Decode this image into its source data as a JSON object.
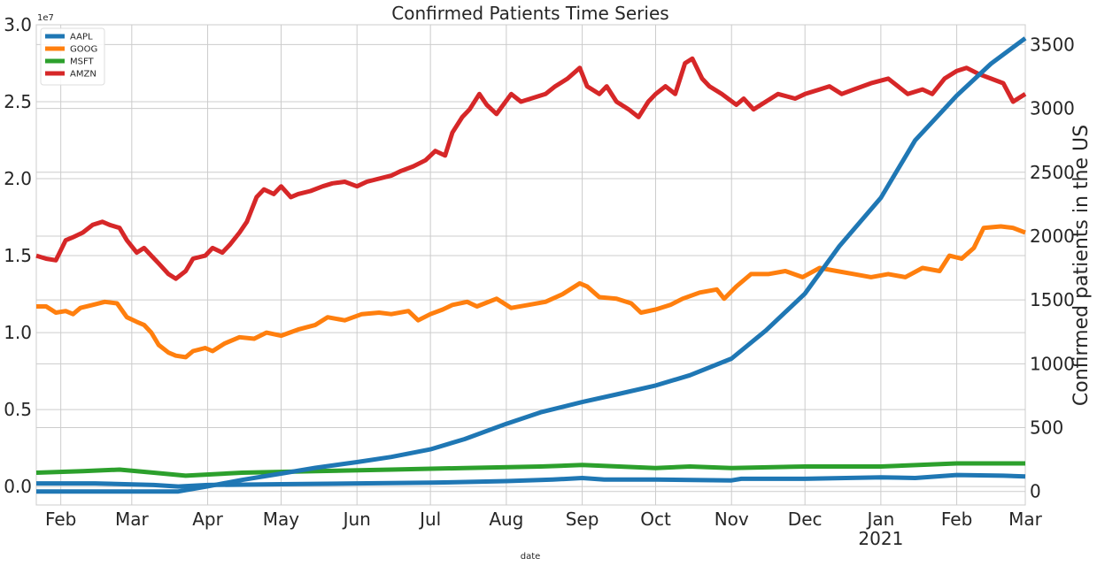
{
  "chart_data": {
    "type": "line",
    "title": "Confirmed Patients Time Series",
    "xlabel": "date",
    "ylabel_left": "",
    "ylabel_right": "Confirmed patients in the US",
    "left_offset_label": "1e7",
    "x_range": [
      "2020-01-22",
      "2021-03-01"
    ],
    "ylim_left": [
      -0.12,
      3.0
    ],
    "ylim_right": [
      -106,
      3655
    ],
    "grid": true,
    "legend_position": "top-left",
    "x_ticks": [
      {
        "date": "2020-02-01",
        "label": "Feb",
        "sub": ""
      },
      {
        "date": "2020-03-01",
        "label": "Mar",
        "sub": ""
      },
      {
        "date": "2020-04-01",
        "label": "Apr",
        "sub": ""
      },
      {
        "date": "2020-05-01",
        "label": "May",
        "sub": ""
      },
      {
        "date": "2020-06-01",
        "label": "Jun",
        "sub": ""
      },
      {
        "date": "2020-07-01",
        "label": "Jul",
        "sub": ""
      },
      {
        "date": "2020-08-01",
        "label": "Aug",
        "sub": ""
      },
      {
        "date": "2020-09-01",
        "label": "Sep",
        "sub": ""
      },
      {
        "date": "2020-10-01",
        "label": "Oct",
        "sub": ""
      },
      {
        "date": "2020-11-01",
        "label": "Nov",
        "sub": ""
      },
      {
        "date": "2020-12-01",
        "label": "Dec",
        "sub": ""
      },
      {
        "date": "2021-01-01",
        "label": "Jan",
        "sub": "2021"
      },
      {
        "date": "2021-02-01",
        "label": "Feb",
        "sub": ""
      },
      {
        "date": "2021-03-01",
        "label": "Mar",
        "sub": ""
      }
    ],
    "y_ticks_left": [
      {
        "value": 0.0,
        "label": "0.0"
      },
      {
        "value": 0.5,
        "label": "0.5"
      },
      {
        "value": 1.0,
        "label": "1.0"
      },
      {
        "value": 1.5,
        "label": "1.5"
      },
      {
        "value": 2.0,
        "label": "2.0"
      },
      {
        "value": 2.5,
        "label": "2.5"
      },
      {
        "value": 3.0,
        "label": "3.0"
      }
    ],
    "y_ticks_right": [
      {
        "value": 0,
        "label": "0"
      },
      {
        "value": 500,
        "label": "500"
      },
      {
        "value": 1000,
        "label": "1000"
      },
      {
        "value": 1500,
        "label": "1500"
      },
      {
        "value": 2000,
        "label": "2000"
      },
      {
        "value": 2500,
        "label": "2500"
      },
      {
        "value": 3000,
        "label": "3000"
      },
      {
        "value": 3500,
        "label": "3500"
      }
    ],
    "series": [
      {
        "name": "AAPL",
        "axis": "left",
        "color": "#1f77b4",
        "points": [
          [
            "2020-01-22",
            0.02
          ],
          [
            "2020-02-15",
            0.02
          ],
          [
            "2020-03-10",
            0.01
          ],
          [
            "2020-03-20",
            0.0
          ],
          [
            "2020-04-01",
            0.01
          ],
          [
            "2020-05-01",
            0.015
          ],
          [
            "2020-06-01",
            0.02
          ],
          [
            "2020-07-01",
            0.025
          ],
          [
            "2020-08-01",
            0.035
          ],
          [
            "2020-08-20",
            0.045
          ],
          [
            "2020-09-01",
            0.055
          ],
          [
            "2020-09-10",
            0.045
          ],
          [
            "2020-10-01",
            0.045
          ],
          [
            "2020-11-01",
            0.04
          ],
          [
            "2020-11-05",
            0.05
          ],
          [
            "2020-12-01",
            0.05
          ],
          [
            "2021-01-01",
            0.06
          ],
          [
            "2021-01-15",
            0.055
          ],
          [
            "2021-02-01",
            0.075
          ],
          [
            "2021-02-20",
            0.07
          ],
          [
            "2021-03-01",
            0.065
          ]
        ]
      },
      {
        "name": "GOOG",
        "axis": "left",
        "color": "#ff7f0e",
        "points": [
          [
            "2020-01-22",
            1.17
          ],
          [
            "2020-01-26",
            1.17
          ],
          [
            "2020-01-30",
            1.13
          ],
          [
            "2020-02-03",
            1.14
          ],
          [
            "2020-02-06",
            1.12
          ],
          [
            "2020-02-09",
            1.16
          ],
          [
            "2020-02-14",
            1.18
          ],
          [
            "2020-02-19",
            1.2
          ],
          [
            "2020-02-24",
            1.19
          ],
          [
            "2020-02-28",
            1.1
          ],
          [
            "2020-03-03",
            1.07
          ],
          [
            "2020-03-06",
            1.05
          ],
          [
            "2020-03-09",
            1.0
          ],
          [
            "2020-03-12",
            0.92
          ],
          [
            "2020-03-16",
            0.87
          ],
          [
            "2020-03-19",
            0.85
          ],
          [
            "2020-03-23",
            0.84
          ],
          [
            "2020-03-26",
            0.88
          ],
          [
            "2020-03-31",
            0.9
          ],
          [
            "2020-04-03",
            0.88
          ],
          [
            "2020-04-08",
            0.93
          ],
          [
            "2020-04-14",
            0.97
          ],
          [
            "2020-04-20",
            0.96
          ],
          [
            "2020-04-25",
            1.0
          ],
          [
            "2020-05-01",
            0.98
          ],
          [
            "2020-05-08",
            1.02
          ],
          [
            "2020-05-15",
            1.05
          ],
          [
            "2020-05-20",
            1.1
          ],
          [
            "2020-05-27",
            1.08
          ],
          [
            "2020-06-03",
            1.12
          ],
          [
            "2020-06-10",
            1.13
          ],
          [
            "2020-06-15",
            1.12
          ],
          [
            "2020-06-22",
            1.14
          ],
          [
            "2020-06-26",
            1.08
          ],
          [
            "2020-07-01",
            1.12
          ],
          [
            "2020-07-06",
            1.15
          ],
          [
            "2020-07-10",
            1.18
          ],
          [
            "2020-07-16",
            1.2
          ],
          [
            "2020-07-20",
            1.17
          ],
          [
            "2020-07-28",
            1.22
          ],
          [
            "2020-08-03",
            1.16
          ],
          [
            "2020-08-10",
            1.18
          ],
          [
            "2020-08-17",
            1.2
          ],
          [
            "2020-08-24",
            1.25
          ],
          [
            "2020-08-31",
            1.32
          ],
          [
            "2020-09-03",
            1.3
          ],
          [
            "2020-09-08",
            1.23
          ],
          [
            "2020-09-15",
            1.22
          ],
          [
            "2020-09-21",
            1.19
          ],
          [
            "2020-09-25",
            1.13
          ],
          [
            "2020-10-01",
            1.15
          ],
          [
            "2020-10-07",
            1.18
          ],
          [
            "2020-10-12",
            1.22
          ],
          [
            "2020-10-19",
            1.26
          ],
          [
            "2020-10-26",
            1.28
          ],
          [
            "2020-10-29",
            1.22
          ],
          [
            "2020-11-03",
            1.3
          ],
          [
            "2020-11-09",
            1.38
          ],
          [
            "2020-11-16",
            1.38
          ],
          [
            "2020-11-23",
            1.4
          ],
          [
            "2020-11-30",
            1.36
          ],
          [
            "2020-12-07",
            1.42
          ],
          [
            "2020-12-14",
            1.4
          ],
          [
            "2020-12-21",
            1.38
          ],
          [
            "2020-12-28",
            1.36
          ],
          [
            "2021-01-04",
            1.38
          ],
          [
            "2021-01-11",
            1.36
          ],
          [
            "2021-01-18",
            1.42
          ],
          [
            "2021-01-25",
            1.4
          ],
          [
            "2021-01-29",
            1.5
          ],
          [
            "2021-02-03",
            1.48
          ],
          [
            "2021-02-08",
            1.55
          ],
          [
            "2021-02-12",
            1.68
          ],
          [
            "2021-02-19",
            1.69
          ],
          [
            "2021-02-24",
            1.68
          ],
          [
            "2021-03-01",
            1.65
          ]
        ]
      },
      {
        "name": "MSFT",
        "axis": "left",
        "color": "#2ca02c",
        "points": [
          [
            "2020-01-22",
            0.09
          ],
          [
            "2020-02-10",
            0.1
          ],
          [
            "2020-02-25",
            0.11
          ],
          [
            "2020-03-10",
            0.09
          ],
          [
            "2020-03-23",
            0.07
          ],
          [
            "2020-04-15",
            0.09
          ],
          [
            "2020-05-15",
            0.1
          ],
          [
            "2020-06-15",
            0.11
          ],
          [
            "2020-07-15",
            0.12
          ],
          [
            "2020-08-15",
            0.13
          ],
          [
            "2020-09-01",
            0.14
          ],
          [
            "2020-10-01",
            0.12
          ],
          [
            "2020-10-15",
            0.13
          ],
          [
            "2020-11-01",
            0.12
          ],
          [
            "2020-12-01",
            0.13
          ],
          [
            "2021-01-01",
            0.13
          ],
          [
            "2021-02-01",
            0.15
          ],
          [
            "2021-03-01",
            0.15
          ]
        ]
      },
      {
        "name": "AMZN",
        "axis": "left",
        "color": "#d62728",
        "points": [
          [
            "2020-01-22",
            1.5
          ],
          [
            "2020-01-26",
            1.48
          ],
          [
            "2020-01-30",
            1.47
          ],
          [
            "2020-02-03",
            1.6
          ],
          [
            "2020-02-06",
            1.62
          ],
          [
            "2020-02-10",
            1.65
          ],
          [
            "2020-02-14",
            1.7
          ],
          [
            "2020-02-18",
            1.72
          ],
          [
            "2020-02-21",
            1.7
          ],
          [
            "2020-02-25",
            1.68
          ],
          [
            "2020-02-28",
            1.6
          ],
          [
            "2020-03-03",
            1.52
          ],
          [
            "2020-03-06",
            1.55
          ],
          [
            "2020-03-09",
            1.5
          ],
          [
            "2020-03-12",
            1.45
          ],
          [
            "2020-03-16",
            1.38
          ],
          [
            "2020-03-19",
            1.35
          ],
          [
            "2020-03-23",
            1.4
          ],
          [
            "2020-03-26",
            1.48
          ],
          [
            "2020-03-31",
            1.5
          ],
          [
            "2020-04-03",
            1.55
          ],
          [
            "2020-04-07",
            1.52
          ],
          [
            "2020-04-10",
            1.57
          ],
          [
            "2020-04-14",
            1.65
          ],
          [
            "2020-04-17",
            1.72
          ],
          [
            "2020-04-21",
            1.88
          ],
          [
            "2020-04-24",
            1.93
          ],
          [
            "2020-04-28",
            1.9
          ],
          [
            "2020-05-01",
            1.95
          ],
          [
            "2020-05-05",
            1.88
          ],
          [
            "2020-05-08",
            1.9
          ],
          [
            "2020-05-13",
            1.92
          ],
          [
            "2020-05-18",
            1.95
          ],
          [
            "2020-05-22",
            1.97
          ],
          [
            "2020-05-27",
            1.98
          ],
          [
            "2020-06-01",
            1.95
          ],
          [
            "2020-06-05",
            1.98
          ],
          [
            "2020-06-10",
            2.0
          ],
          [
            "2020-06-15",
            2.02
          ],
          [
            "2020-06-19",
            2.05
          ],
          [
            "2020-06-24",
            2.08
          ],
          [
            "2020-06-29",
            2.12
          ],
          [
            "2020-07-03",
            2.18
          ],
          [
            "2020-07-07",
            2.15
          ],
          [
            "2020-07-10",
            2.3
          ],
          [
            "2020-07-14",
            2.4
          ],
          [
            "2020-07-17",
            2.45
          ],
          [
            "2020-07-21",
            2.55
          ],
          [
            "2020-07-24",
            2.48
          ],
          [
            "2020-07-28",
            2.42
          ],
          [
            "2020-08-03",
            2.55
          ],
          [
            "2020-08-07",
            2.5
          ],
          [
            "2020-08-11",
            2.52
          ],
          [
            "2020-08-17",
            2.55
          ],
          [
            "2020-08-21",
            2.6
          ],
          [
            "2020-08-26",
            2.65
          ],
          [
            "2020-08-31",
            2.72
          ],
          [
            "2020-09-03",
            2.6
          ],
          [
            "2020-09-08",
            2.55
          ],
          [
            "2020-09-11",
            2.6
          ],
          [
            "2020-09-15",
            2.5
          ],
          [
            "2020-09-20",
            2.45
          ],
          [
            "2020-09-24",
            2.4
          ],
          [
            "2020-09-28",
            2.5
          ],
          [
            "2020-10-01",
            2.55
          ],
          [
            "2020-10-05",
            2.6
          ],
          [
            "2020-10-09",
            2.55
          ],
          [
            "2020-10-13",
            2.75
          ],
          [
            "2020-10-16",
            2.78
          ],
          [
            "2020-10-20",
            2.65
          ],
          [
            "2020-10-23",
            2.6
          ],
          [
            "2020-10-28",
            2.55
          ],
          [
            "2020-11-03",
            2.48
          ],
          [
            "2020-11-06",
            2.52
          ],
          [
            "2020-11-10",
            2.45
          ],
          [
            "2020-11-15",
            2.5
          ],
          [
            "2020-11-20",
            2.55
          ],
          [
            "2020-11-27",
            2.52
          ],
          [
            "2020-12-01",
            2.55
          ],
          [
            "2020-12-07",
            2.58
          ],
          [
            "2020-12-11",
            2.6
          ],
          [
            "2020-12-16",
            2.55
          ],
          [
            "2020-12-21",
            2.58
          ],
          [
            "2020-12-28",
            2.62
          ],
          [
            "2021-01-04",
            2.65
          ],
          [
            "2021-01-08",
            2.6
          ],
          [
            "2021-01-12",
            2.55
          ],
          [
            "2021-01-18",
            2.58
          ],
          [
            "2021-01-22",
            2.55
          ],
          [
            "2021-01-27",
            2.65
          ],
          [
            "2021-02-01",
            2.7
          ],
          [
            "2021-02-05",
            2.72
          ],
          [
            "2021-02-10",
            2.68
          ],
          [
            "2021-02-15",
            2.65
          ],
          [
            "2021-02-20",
            2.62
          ],
          [
            "2021-02-24",
            2.5
          ],
          [
            "2021-03-01",
            2.55
          ]
        ]
      },
      {
        "name": "",
        "axis": "right",
        "color": "#1f77b4",
        "legend": false,
        "points": [
          [
            "2020-01-22",
            0
          ],
          [
            "2020-03-20",
            0
          ],
          [
            "2020-04-01",
            40
          ],
          [
            "2020-04-15",
            90
          ],
          [
            "2020-05-01",
            140
          ],
          [
            "2020-05-15",
            185
          ],
          [
            "2020-06-01",
            230
          ],
          [
            "2020-06-15",
            270
          ],
          [
            "2020-07-01",
            330
          ],
          [
            "2020-07-15",
            410
          ],
          [
            "2020-08-01",
            530
          ],
          [
            "2020-08-15",
            620
          ],
          [
            "2020-09-01",
            700
          ],
          [
            "2020-09-15",
            760
          ],
          [
            "2020-10-01",
            830
          ],
          [
            "2020-10-15",
            910
          ],
          [
            "2020-11-01",
            1040
          ],
          [
            "2020-11-15",
            1260
          ],
          [
            "2020-12-01",
            1550
          ],
          [
            "2020-12-15",
            1920
          ],
          [
            "2021-01-01",
            2300
          ],
          [
            "2021-01-15",
            2750
          ],
          [
            "2021-02-01",
            3100
          ],
          [
            "2021-02-15",
            3350
          ],
          [
            "2021-03-01",
            3550
          ]
        ]
      }
    ]
  }
}
